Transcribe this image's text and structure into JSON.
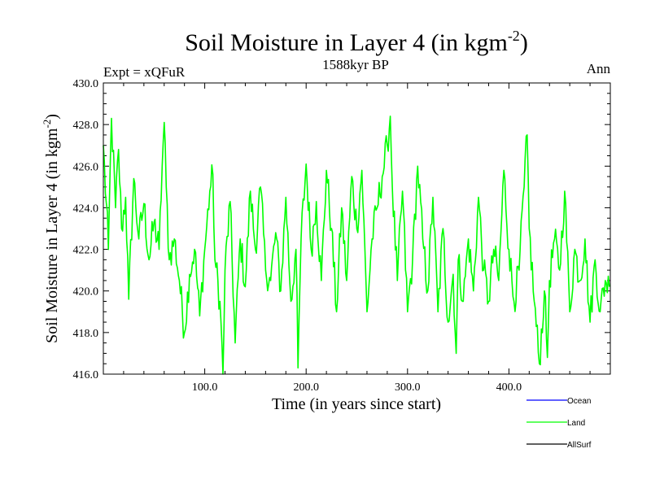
{
  "chart_data": {
    "type": "line",
    "title": "Soil Moisture in Layer 4 (in kgm",
    "title_sup": "-2",
    "title_tail": ")",
    "subtitle": "1588kyr BP",
    "left_label": "Expt = xQFuR",
    "right_label": "Ann",
    "xlabel": "Time (in years since start)",
    "ylabel": "Soil Moisture in Layer 4 (in kgm",
    "ylabel_sup": "-2",
    "ylabel_tail": ")",
    "xlim": [
      0,
      500
    ],
    "ylim": [
      416,
      430
    ],
    "xticks": [
      100,
      200,
      300,
      400
    ],
    "xtick_labels": [
      "100.0",
      "200.0",
      "300.0",
      "400.0"
    ],
    "yticks": [
      416,
      418,
      420,
      422,
      424,
      426,
      428,
      430
    ],
    "ytick_labels": [
      "416.0",
      "418.0",
      "420.0",
      "422.0",
      "424.0",
      "426.0",
      "428.0",
      "430.0"
    ],
    "legend": [
      {
        "name": "Ocean",
        "color": "#0000ff"
      },
      {
        "name": "Land",
        "color": "#00ff00"
      },
      {
        "name": "AllSurf",
        "color": "#000000"
      }
    ],
    "series": [
      {
        "name": "Land",
        "color": "#00ff00",
        "x": [
          0,
          5,
          8,
          12,
          15,
          18,
          22,
          25,
          30,
          35,
          40,
          45,
          50,
          55,
          58,
          60,
          62,
          65,
          70,
          75,
          80,
          85,
          90,
          95,
          100,
          105,
          108,
          110,
          115,
          118,
          120,
          125,
          130,
          135,
          140,
          145,
          150,
          155,
          160,
          165,
          170,
          175,
          180,
          185,
          190,
          192,
          195,
          200,
          205,
          210,
          215,
          220,
          225,
          230,
          235,
          240,
          245,
          250,
          255,
          260,
          265,
          270,
          275,
          280,
          283,
          285,
          290,
          295,
          300,
          305,
          310,
          315,
          320,
          325,
          330,
          335,
          340,
          345,
          348,
          350,
          355,
          360,
          365,
          370,
          375,
          380,
          385,
          390,
          395,
          400,
          405,
          410,
          415,
          418,
          420,
          425,
          430,
          435,
          438,
          440,
          445,
          450,
          455,
          460,
          465,
          470,
          475,
          480,
          485,
          490,
          495,
          499
        ],
        "y": [
          427.0,
          422.0,
          428.3,
          424.0,
          426.8,
          423.0,
          424.5,
          419.6,
          425.4,
          422.5,
          424.2,
          421.5,
          423.3,
          422.0,
          426.0,
          428.1,
          425.0,
          421.5,
          422.5,
          420.5,
          418.0,
          420.8,
          422.0,
          418.8,
          422.0,
          424.8,
          425.6,
          421.5,
          419.5,
          416.0,
          421.0,
          424.3,
          417.5,
          422.5,
          420.2,
          424.8,
          422.0,
          425.0,
          421.0,
          420.5,
          422.8,
          420.0,
          424.5,
          419.5,
          422.0,
          416.3,
          422.5,
          426.1,
          422.0,
          424.3,
          420.5,
          425.8,
          423.0,
          419.0,
          424.0,
          420.5,
          425.5,
          423.0,
          425.8,
          419.0,
          422.5,
          424.0,
          425.5,
          427.0,
          428.4,
          425.0,
          420.5,
          424.8,
          419.0,
          421.5,
          426.0,
          422.5,
          420.0,
          424.5,
          419.0,
          423.0,
          418.5,
          420.8,
          417.0,
          421.5,
          419.5,
          422.5,
          420.0,
          424.5,
          421.0,
          419.5,
          422.0,
          420.5,
          425.8,
          422.0,
          419.5,
          421.0,
          425.0,
          427.5,
          423.0,
          419.5,
          416.5,
          420.0,
          416.8,
          420.5,
          422.5,
          421.0,
          424.8,
          419.0,
          422.0,
          420.5,
          422.5,
          418.5,
          421.5,
          419.0,
          420.5,
          420.2
        ]
      }
    ]
  }
}
